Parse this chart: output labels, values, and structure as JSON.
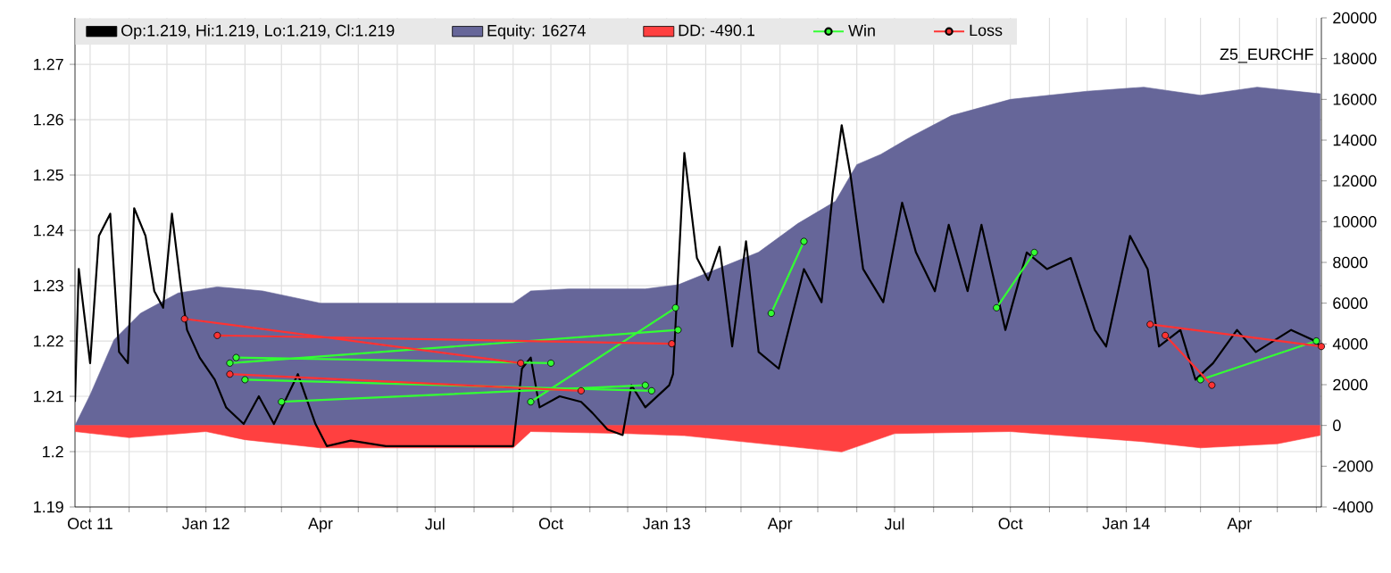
{
  "chart_data": {
    "type": "line",
    "title": "Z5_EURCHF",
    "xlim": [
      "2011-09-19",
      "2014-06-05"
    ],
    "xticks": [
      {
        "value": "2011-10-01",
        "label": "Oct 11"
      },
      {
        "value": "2011-11-01",
        "label": null
      },
      {
        "value": "2011-12-01",
        "label": null
      },
      {
        "value": "2012-01-01",
        "label": "Jan 12"
      },
      {
        "value": "2012-02-01",
        "label": null
      },
      {
        "value": "2012-03-01",
        "label": null
      },
      {
        "value": "2012-04-01",
        "label": "Apr"
      },
      {
        "value": "2012-05-01",
        "label": null
      },
      {
        "value": "2012-06-01",
        "label": null
      },
      {
        "value": "2012-07-01",
        "label": "Jul"
      },
      {
        "value": "2012-08-01",
        "label": null
      },
      {
        "value": "2012-09-01",
        "label": null
      },
      {
        "value": "2012-10-01",
        "label": "Oct"
      },
      {
        "value": "2012-11-01",
        "label": null
      },
      {
        "value": "2012-12-01",
        "label": null
      },
      {
        "value": "2013-01-01",
        "label": "Jan 13"
      },
      {
        "value": "2013-02-01",
        "label": null
      },
      {
        "value": "2013-03-01",
        "label": null
      },
      {
        "value": "2013-04-01",
        "label": "Apr"
      },
      {
        "value": "2013-05-01",
        "label": null
      },
      {
        "value": "2013-06-01",
        "label": null
      },
      {
        "value": "2013-07-01",
        "label": "Jul"
      },
      {
        "value": "2013-08-01",
        "label": null
      },
      {
        "value": "2013-09-01",
        "label": null
      },
      {
        "value": "2013-10-01",
        "label": "Oct"
      },
      {
        "value": "2013-11-01",
        "label": null
      },
      {
        "value": "2013-12-01",
        "label": null
      },
      {
        "value": "2014-01-01",
        "label": "Jan 14"
      },
      {
        "value": "2014-02-01",
        "label": null
      },
      {
        "value": "2014-03-01",
        "label": null
      },
      {
        "value": "2014-04-01",
        "label": "Apr"
      },
      {
        "value": "2014-05-01",
        "label": null
      },
      {
        "value": "2014-06-01",
        "label": null
      }
    ],
    "ylim": [
      1.19,
      1.2784
    ],
    "yticks": [
      1.19,
      1.2,
      1.21,
      1.22,
      1.23,
      1.24,
      1.25,
      1.26,
      1.27
    ],
    "y2lim": [
      -4000,
      20000
    ],
    "y2ticks": [
      -4000,
      -2000,
      0,
      2000,
      4000,
      6000,
      8000,
      10000,
      12000,
      14000,
      16000,
      18000,
      20000
    ],
    "grid": true,
    "legend": "top",
    "series": [
      {
        "name": "Op:1.219, Hi:1.219, Lo:1.219, Cl:1.219",
        "color": "#000000",
        "x": [
          "2011-09-19",
          "2011-09-22",
          "2011-10-01",
          "2011-10-08",
          "2011-10-17",
          "2011-10-24",
          "2011-10-31",
          "2011-11-05",
          "2011-11-14",
          "2011-11-21",
          "2011-11-28",
          "2011-12-05",
          "2011-12-12",
          "2011-12-17",
          "2011-12-27",
          "2012-01-08",
          "2012-01-17",
          "2012-01-31",
          "2012-02-12",
          "2012-02-24",
          "2012-03-14",
          "2012-03-28",
          "2012-04-06",
          "2012-04-25",
          "2012-05-23",
          "2012-07-05",
          "2012-08-04",
          "2012-09-01",
          "2012-09-08",
          "2012-09-15",
          "2012-09-22",
          "2012-10-08",
          "2012-10-25",
          "2012-11-03",
          "2012-11-15",
          "2012-11-27",
          "2012-12-04",
          "2012-12-15",
          "2013-01-03",
          "2013-01-06",
          "2013-01-15",
          "2013-01-25",
          "2013-02-03",
          "2013-02-12",
          "2013-02-22",
          "2013-03-05",
          "2013-03-15",
          "2013-03-31",
          "2013-04-20",
          "2013-05-04",
          "2013-05-13",
          "2013-05-20",
          "2013-05-27",
          "2013-06-06",
          "2013-06-22",
          "2013-07-07",
          "2013-07-18",
          "2013-08-02",
          "2013-08-13",
          "2013-08-28",
          "2013-09-08",
          "2013-09-27",
          "2013-10-14",
          "2013-10-30",
          "2013-11-18",
          "2013-12-07",
          "2013-12-16",
          "2014-01-04",
          "2014-01-18",
          "2014-01-27",
          "2014-02-13",
          "2014-02-25",
          "2014-03-11",
          "2014-03-30",
          "2014-04-14",
          "2014-05-12",
          "2014-05-31",
          "2014-06-04"
        ],
        "values": [
          1.209,
          1.233,
          1.216,
          1.239,
          1.243,
          1.218,
          1.216,
          1.244,
          1.239,
          1.229,
          1.226,
          1.243,
          1.23,
          1.222,
          1.217,
          1.213,
          1.208,
          1.205,
          1.21,
          1.205,
          1.214,
          1.205,
          1.201,
          1.202,
          1.201,
          1.201,
          1.201,
          1.201,
          1.215,
          1.217,
          1.208,
          1.21,
          1.209,
          1.207,
          1.204,
          1.203,
          1.212,
          1.208,
          1.212,
          1.214,
          1.254,
          1.235,
          1.231,
          1.237,
          1.219,
          1.238,
          1.218,
          1.215,
          1.233,
          1.227,
          1.247,
          1.259,
          1.25,
          1.233,
          1.227,
          1.245,
          1.236,
          1.229,
          1.241,
          1.229,
          1.241,
          1.222,
          1.236,
          1.233,
          1.235,
          1.222,
          1.219,
          1.239,
          1.233,
          1.219,
          1.222,
          1.213,
          1.216,
          1.222,
          1.218,
          1.222,
          1.22,
          1.219
        ]
      },
      {
        "name": "Equity: 16274",
        "type": "area",
        "axis": "y2",
        "color": "#666699",
        "x": [
          "2011-09-19",
          "2011-10-01",
          "2011-10-20",
          "2011-11-10",
          "2011-12-10",
          "2012-01-10",
          "2012-02-15",
          "2012-04-01",
          "2012-06-01",
          "2012-09-01",
          "2012-09-15",
          "2012-10-15",
          "2012-12-15",
          "2013-01-10",
          "2013-02-15",
          "2013-03-15",
          "2013-04-15",
          "2013-05-15",
          "2013-06-01",
          "2013-06-20",
          "2013-07-15",
          "2013-08-15",
          "2013-10-01",
          "2013-12-01",
          "2014-01-15",
          "2014-03-01",
          "2014-04-15",
          "2014-06-04"
        ],
        "values": [
          0,
          1500,
          4200,
          5500,
          6500,
          6800,
          6600,
          6000,
          6000,
          6000,
          6600,
          6700,
          6700,
          6900,
          7800,
          8500,
          9900,
          11000,
          12800,
          13300,
          14200,
          15200,
          16000,
          16400,
          16600,
          16200,
          16600,
          16274
        ]
      },
      {
        "name": "DD: -490.1",
        "type": "area",
        "axis": "y2",
        "color": "#ff4040",
        "x": [
          "2011-09-19",
          "2011-11-01",
          "2012-01-01",
          "2012-02-01",
          "2012-04-01",
          "2012-09-01",
          "2012-09-15",
          "2012-12-01",
          "2013-01-15",
          "2013-05-20",
          "2013-07-01",
          "2013-10-01",
          "2014-01-15",
          "2014-03-01",
          "2014-05-01",
          "2014-06-04"
        ],
        "values": [
          -300,
          -600,
          -300,
          -700,
          -1100,
          -1100,
          -300,
          -400,
          -500,
          -1300,
          -400,
          -300,
          -800,
          -1100,
          -900,
          -490.1
        ]
      },
      {
        "name": "Win",
        "color": "#33ff33",
        "marker": "circle",
        "x": [
          "2012-01-20",
          "2013-01-10",
          null,
          "2012-02-01",
          "2012-12-20",
          null,
          "2012-03-01",
          "2012-12-15",
          null,
          "2012-01-25",
          "2012-10-01",
          null,
          "2012-09-15",
          "2013-01-08",
          null,
          "2013-03-25",
          "2013-04-20",
          null,
          "2013-09-20",
          "2013-10-20",
          null,
          "2014-03-01",
          "2014-06-01"
        ],
        "values": [
          1.216,
          1.222,
          null,
          1.213,
          1.211,
          null,
          1.209,
          1.212,
          null,
          1.217,
          1.216,
          null,
          1.209,
          1.226,
          null,
          1.225,
          1.238,
          null,
          1.226,
          1.236,
          null,
          1.213,
          1.22
        ]
      },
      {
        "name": "Loss",
        "color": "#ff3333",
        "marker": "circle",
        "x": [
          "2011-12-15",
          "2012-09-07",
          null,
          "2012-01-10",
          "2013-01-05",
          null,
          "2012-01-20",
          "2012-10-25",
          null,
          "2014-01-20",
          "2014-06-05",
          null,
          "2014-02-01",
          "2014-03-10"
        ],
        "values": [
          1.224,
          1.216,
          null,
          1.221,
          1.2195,
          null,
          1.214,
          1.211,
          null,
          1.223,
          1.219,
          null,
          1.221,
          1.212
        ]
      }
    ]
  }
}
